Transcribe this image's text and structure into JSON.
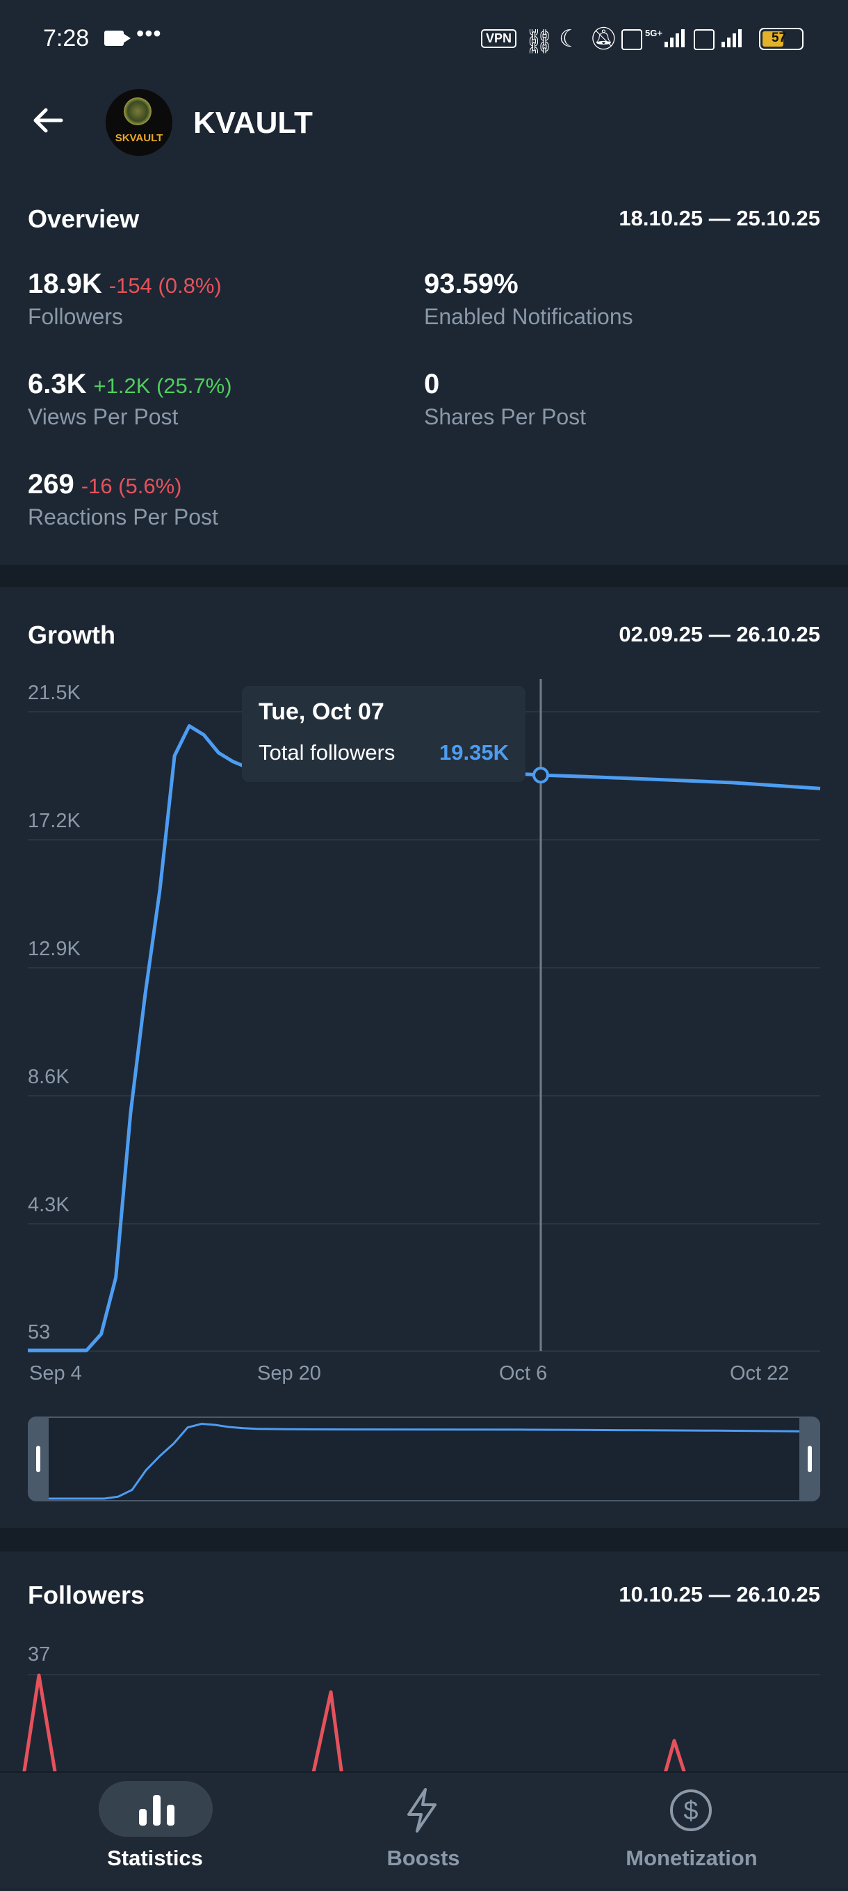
{
  "status_bar": {
    "time": "7:28",
    "battery": "57",
    "vpn": "VPN"
  },
  "header": {
    "channel_name": "KVAULT",
    "avatar_text": "SKVAULT"
  },
  "overview": {
    "title": "Overview",
    "range": "18.10.25 — 25.10.25",
    "stats": {
      "followers": {
        "value": "18.9K",
        "delta": "-154 (0.8%)",
        "label": "Followers"
      },
      "notifications": {
        "value": "93.59%",
        "label": "Enabled Notifications"
      },
      "views": {
        "value": "6.3K",
        "delta": "+1.2K (25.7%)",
        "label": "Views Per Post"
      },
      "shares": {
        "value": "0",
        "label": "Shares Per Post"
      },
      "reactions": {
        "value": "269",
        "delta": "-16 (5.6%)",
        "label": "Reactions Per Post"
      }
    }
  },
  "growth": {
    "title": "Growth",
    "range": "02.09.25 — 26.10.25",
    "tooltip": {
      "date": "Tue, Oct 07",
      "label": "Total followers",
      "value": "19.35K"
    }
  },
  "followers_section": {
    "title": "Followers",
    "range": "10.10.25 — 26.10.25",
    "y_tick": "37"
  },
  "bottom_nav": {
    "statistics": "Statistics",
    "boosts": "Boosts",
    "monetization": "Monetization"
  },
  "colors": {
    "line": "#4d9df2",
    "negative": "#e5525c",
    "positive": "#4fce5d",
    "background": "#1d2733"
  },
  "chart_data": [
    {
      "type": "line",
      "title": "Growth",
      "series": [
        {
          "x": [
            "Sep 2",
            "Sep 4",
            "Sep 6",
            "Sep 7",
            "Sep 8",
            "Sep 9",
            "Sep 10",
            "Sep 11",
            "Sep 12",
            "Sep 13",
            "Sep 14",
            "Sep 15",
            "Sep 16",
            "Sep 17",
            "Sep 19",
            "Sep 21",
            "Sep 25",
            "Sep 30",
            "Oct 6",
            "Oct 7",
            "Oct 10",
            "Oct 15",
            "Oct 20",
            "Oct 26"
          ],
          "y": [
            53,
            53,
            53,
            600,
            2500,
            8000,
            12000,
            15500,
            20000,
            21000,
            20700,
            20100,
            19800,
            19600,
            19500,
            19450,
            19420,
            19400,
            19380,
            19350,
            19300,
            19200,
            19100,
            18900
          ]
        }
      ],
      "y_ticks": [
        "21.5K",
        "17.2K",
        "12.9K",
        "8.6K",
        "4.3K",
        "53"
      ],
      "x_ticks": [
        "Sep 4",
        "Sep 20",
        "Oct 6",
        "Oct 22"
      ],
      "ylim": [
        53,
        21500
      ],
      "grid": true
    },
    {
      "type": "line",
      "title": "Followers",
      "series": [
        {
          "x": [
            "Oct 10",
            "Oct 15",
            "Oct 23"
          ],
          "y": [
            37,
            31,
            10
          ]
        }
      ],
      "y_ticks": [
        "37"
      ]
    }
  ]
}
